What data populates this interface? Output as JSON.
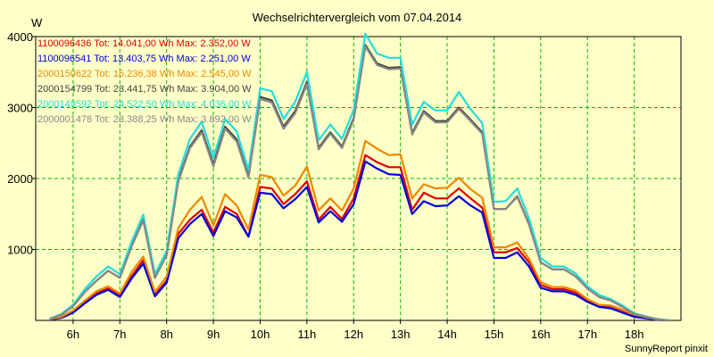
{
  "chart_data": {
    "type": "line",
    "title": "Wechselrichtervergleich vom 07.04.2014",
    "ylabel": "W",
    "xlabel": "",
    "ylim": [
      0,
      4000
    ],
    "xlim": [
      5.2,
      19.0
    ],
    "grid": true,
    "legend_position": "top-left",
    "yticks": [
      1000,
      2000,
      3000,
      4000
    ],
    "xticks": [
      {
        "x": 6,
        "label": "6h"
      },
      {
        "x": 7,
        "label": "7h"
      },
      {
        "x": 8,
        "label": "8h"
      },
      {
        "x": 9,
        "label": "9h"
      },
      {
        "x": 10,
        "label": "10h"
      },
      {
        "x": 11,
        "label": "11h"
      },
      {
        "x": 12,
        "label": "12h"
      },
      {
        "x": 13,
        "label": "13h"
      },
      {
        "x": 14,
        "label": "14h"
      },
      {
        "x": 15,
        "label": "15h"
      },
      {
        "x": 16,
        "label": "16h"
      },
      {
        "x": 17,
        "label": "17h"
      },
      {
        "x": 18,
        "label": "18h"
      }
    ],
    "x": [
      5.5,
      5.75,
      6.0,
      6.25,
      6.5,
      6.75,
      7.0,
      7.25,
      7.5,
      7.75,
      8.0,
      8.25,
      8.5,
      8.75,
      9.0,
      9.25,
      9.5,
      9.75,
      10.0,
      10.25,
      10.5,
      10.75,
      11.0,
      11.25,
      11.5,
      11.75,
      12.0,
      12.25,
      12.5,
      12.75,
      13.0,
      13.25,
      13.5,
      13.75,
      14.0,
      14.25,
      14.5,
      14.75,
      15.0,
      15.25,
      15.5,
      15.75,
      16.0,
      16.25,
      16.5,
      16.75,
      17.0,
      17.25,
      17.5,
      17.75,
      18.0,
      18.25,
      18.5,
      18.75
    ],
    "series": [
      {
        "name": "1100096436",
        "legend": "1100096436 Tot: 14.041,00 Wh Max: 2.352,00 W",
        "color": "#dd0000",
        "values": [
          10,
          40,
          120,
          250,
          380,
          450,
          350,
          620,
          850,
          360,
          560,
          1220,
          1420,
          1560,
          1240,
          1600,
          1500,
          1180,
          1880,
          1860,
          1640,
          1780,
          1960,
          1420,
          1600,
          1430,
          1720,
          2330,
          2230,
          2160,
          2160,
          1560,
          1800,
          1720,
          1720,
          1860,
          1720,
          1590,
          960,
          960,
          1020,
          820,
          500,
          440,
          440,
          390,
          280,
          210,
          200,
          140,
          70,
          40,
          10,
          0
        ]
      },
      {
        "name": "1100096541",
        "legend": "1100096541 Tot: 13.403,75 Wh Max: 2.251,00 W",
        "color": "#0000dd",
        "values": [
          10,
          35,
          110,
          240,
          360,
          430,
          330,
          590,
          800,
          340,
          530,
          1160,
          1360,
          1500,
          1190,
          1540,
          1450,
          1180,
          1800,
          1780,
          1580,
          1710,
          1880,
          1380,
          1540,
          1390,
          1640,
          2240,
          2140,
          2060,
          2050,
          1500,
          1680,
          1610,
          1620,
          1750,
          1620,
          1520,
          880,
          880,
          960,
          760,
          460,
          410,
          410,
          360,
          260,
          190,
          170,
          110,
          50,
          30,
          5,
          0
        ]
      },
      {
        "name": "2000150622",
        "legend": "2000150622 Tot: 15.236,38 Wh Max: 2.545,00 W",
        "color": "#ee8800",
        "values": [
          15,
          50,
          140,
          280,
          410,
          480,
          380,
          680,
          900,
          400,
          620,
          1300,
          1560,
          1740,
          1340,
          1780,
          1620,
          1280,
          2050,
          2020,
          1760,
          1900,
          2170,
          1550,
          1720,
          1550,
          1860,
          2530,
          2420,
          2330,
          2340,
          1720,
          1920,
          1860,
          1870,
          2010,
          1850,
          1730,
          1030,
          1030,
          1100,
          870,
          540,
          470,
          470,
          420,
          300,
          220,
          210,
          150,
          80,
          45,
          10,
          0
        ]
      },
      {
        "name": "2000154799",
        "legend": "2000154799 Tot: 23.441,75 Wh Max: 3.904,00 W",
        "color": "#444444",
        "values": [
          20,
          80,
          200,
          400,
          560,
          700,
          600,
          1050,
          1420,
          600,
          920,
          1980,
          2450,
          2680,
          2200,
          2730,
          2550,
          2030,
          3150,
          3100,
          2730,
          2950,
          3360,
          2430,
          2650,
          2450,
          2850,
          3880,
          3620,
          3560,
          3570,
          2640,
          2950,
          2810,
          2810,
          3000,
          2830,
          2650,
          1570,
          1570,
          1750,
          1360,
          820,
          720,
          720,
          620,
          450,
          330,
          280,
          190,
          90,
          50,
          15,
          0
        ]
      },
      {
        "name": "2000149592",
        "legend": "2000149592 Tot: 24.522,50 Wh Max: 4.036,00 W",
        "color": "#22dddd",
        "values": [
          25,
          90,
          220,
          440,
          620,
          760,
          650,
          1110,
          1490,
          650,
          980,
          2060,
          2560,
          2800,
          2290,
          2840,
          2660,
          2120,
          3270,
          3230,
          2840,
          3080,
          3500,
          2540,
          2760,
          2560,
          2970,
          4040,
          3760,
          3700,
          3700,
          2760,
          3080,
          2960,
          2960,
          3220,
          2980,
          2780,
          1670,
          1680,
          1860,
          1440,
          880,
          760,
          760,
          660,
          480,
          360,
          300,
          210,
          100,
          55,
          20,
          0
        ]
      },
      {
        "name": "2000001478",
        "legend": "2000001478 Tot: 23.388,25 Wh Max: 3.892,00 W",
        "color": "#888888",
        "values": [
          20,
          80,
          200,
          400,
          560,
          700,
          600,
          1040,
          1410,
          600,
          920,
          1960,
          2430,
          2650,
          2170,
          2700,
          2520,
          2010,
          3120,
          3070,
          2700,
          2920,
          3330,
          2410,
          2630,
          2430,
          2830,
          3860,
          3600,
          3540,
          3550,
          2620,
          2930,
          2790,
          2790,
          2980,
          2810,
          2630,
          1570,
          1570,
          1740,
          1350,
          820,
          720,
          720,
          620,
          450,
          330,
          280,
          190,
          90,
          50,
          15,
          0
        ]
      }
    ]
  },
  "footer": {
    "credit": "SunnyReport pinxit"
  }
}
